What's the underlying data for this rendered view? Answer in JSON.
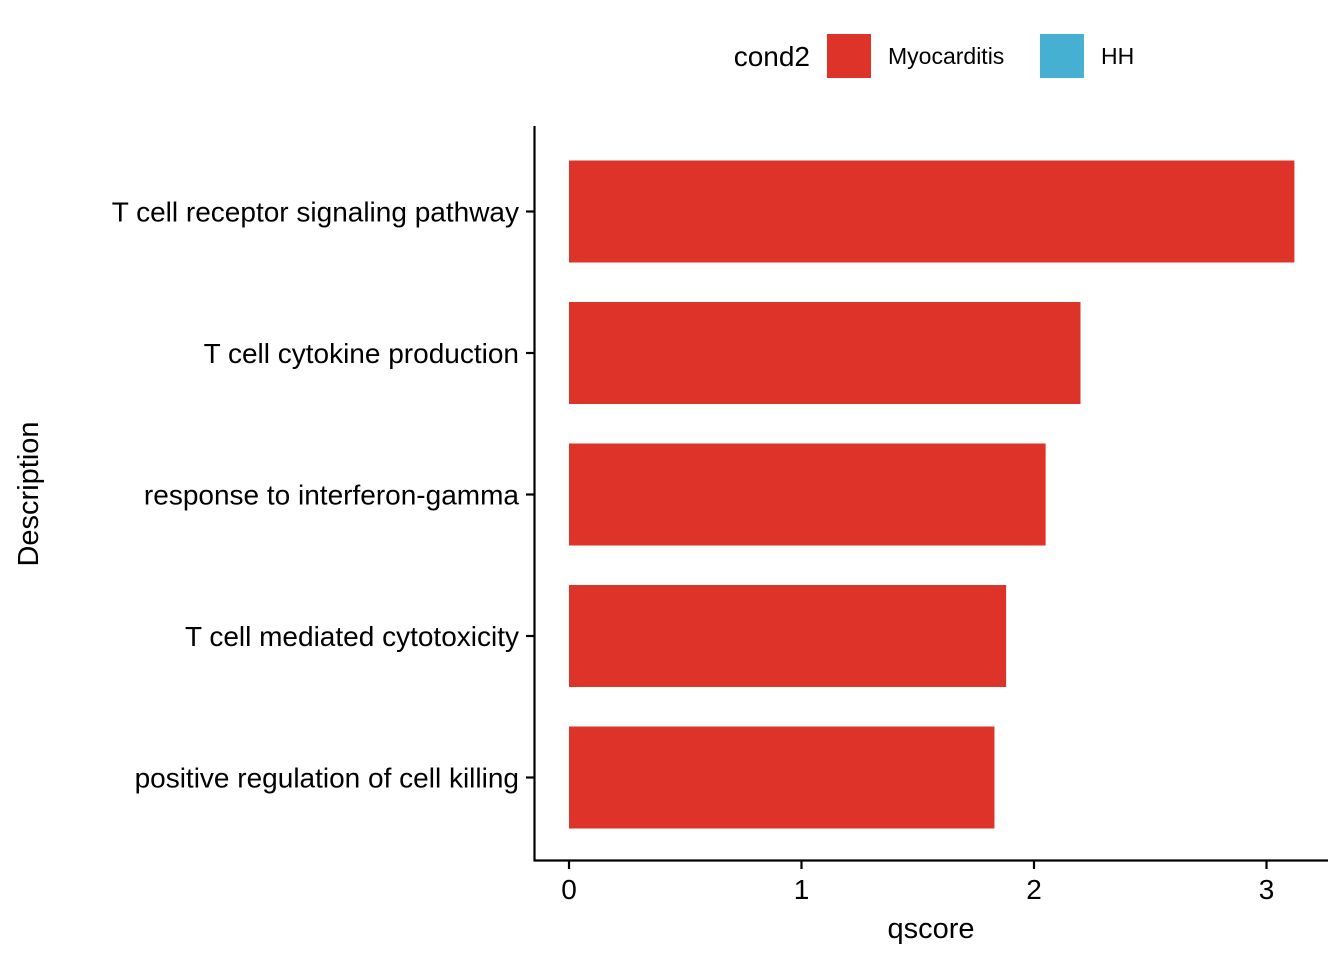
{
  "chart_data": {
    "type": "bar",
    "orientation": "horizontal",
    "categories": [
      "T cell receptor signaling pathway",
      "T cell cytokine production",
      "response to interferon-gamma",
      "T cell mediated cytotoxicity",
      "positive regulation of cell killing"
    ],
    "series": [
      {
        "name": "Myocarditis",
        "values": [
          3.12,
          2.2,
          2.05,
          1.88,
          1.83
        ]
      }
    ],
    "xlabel": "qscore",
    "ylabel": "Description",
    "xlim": [
      -0.15,
      3.25
    ],
    "xticks": [
      "0",
      "1",
      "2",
      "3"
    ],
    "grid": false,
    "legend": {
      "title": "cond2",
      "position": "top",
      "entries": [
        {
          "label": "Myocarditis",
          "color": "#DE3328"
        },
        {
          "label": "HH",
          "color": "#45B0D1"
        }
      ]
    }
  }
}
